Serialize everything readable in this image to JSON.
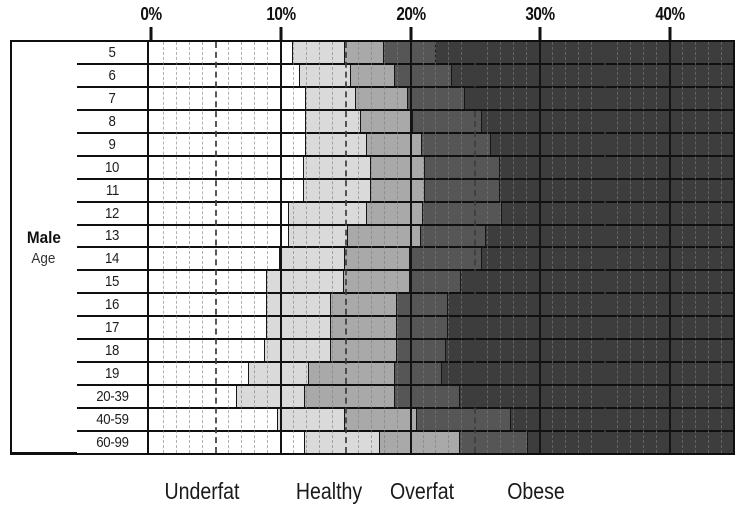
{
  "chart_data": {
    "type": "bar",
    "subtype": "horizontal-stacked-range-chart",
    "title": "",
    "group_label": {
      "bold": "Male",
      "normal": "Age"
    },
    "x_axis": {
      "tick_labels": [
        "0%",
        "10%",
        "20%",
        "30%",
        "40%"
      ],
      "tick_pcts": [
        0,
        10,
        20,
        30,
        40
      ],
      "max_pct": 44.85,
      "minor_gridline_every_pct": 1,
      "dash_gridline_every_pct": 5,
      "solid_gridline_every_pct": 10
    },
    "zones": [
      {
        "label": "Underfat",
        "center_pct": 3.9
      },
      {
        "label": "Healthy",
        "center_pct": 13.7
      },
      {
        "label": "Overfat",
        "center_pct": 20.9
      },
      {
        "label": "Obese",
        "center_pct": 29.7
      }
    ],
    "colors": {
      "underfat": "#ffffff",
      "healthy": "#dadada",
      "overfat": "#a9a9a9",
      "obese": "#565656",
      "obese_deep": "#3d3d3d",
      "line": "#111111"
    },
    "rows": [
      {
        "age": "5",
        "underfat_end": 11.0,
        "healthy_end": 15.0,
        "overfat_end": 18.0,
        "obese_band_end": 22.0
      },
      {
        "age": "6",
        "underfat_end": 11.5,
        "healthy_end": 15.4,
        "overfat_end": 18.8,
        "obese_band_end": 23.2
      },
      {
        "age": "7",
        "underfat_end": 12.0,
        "healthy_end": 15.8,
        "overfat_end": 19.8,
        "obese_band_end": 24.2
      },
      {
        "age": "8",
        "underfat_end": 12.0,
        "healthy_end": 16.2,
        "overfat_end": 20.2,
        "obese_band_end": 25.5
      },
      {
        "age": "9",
        "underfat_end": 12.0,
        "healthy_end": 16.7,
        "overfat_end": 20.9,
        "obese_band_end": 26.2
      },
      {
        "age": "10",
        "underfat_end": 11.8,
        "healthy_end": 17.0,
        "overfat_end": 21.1,
        "obese_band_end": 26.9
      },
      {
        "age": "11",
        "underfat_end": 11.8,
        "healthy_end": 17.0,
        "overfat_end": 21.1,
        "obese_band_end": 26.9
      },
      {
        "age": "12",
        "underfat_end": 10.7,
        "healthy_end": 16.7,
        "overfat_end": 21.0,
        "obese_band_end": 27.0
      },
      {
        "age": "13",
        "underfat_end": 10.7,
        "healthy_end": 15.2,
        "overfat_end": 20.8,
        "obese_band_end": 25.8
      },
      {
        "age": "14",
        "underfat_end": 10.0,
        "healthy_end": 15.0,
        "overfat_end": 20.0,
        "obese_band_end": 25.5
      },
      {
        "age": "15",
        "underfat_end": 9.0,
        "healthy_end": 14.9,
        "overfat_end": 20.0,
        "obese_band_end": 23.9
      },
      {
        "age": "16",
        "underfat_end": 9.0,
        "healthy_end": 13.9,
        "overfat_end": 19.0,
        "obese_band_end": 22.9
      },
      {
        "age": "17",
        "underfat_end": 9.0,
        "healthy_end": 13.9,
        "overfat_end": 19.0,
        "obese_band_end": 22.9
      },
      {
        "age": "18",
        "underfat_end": 8.8,
        "healthy_end": 13.9,
        "overfat_end": 19.0,
        "obese_band_end": 22.7
      },
      {
        "age": "19",
        "underfat_end": 7.6,
        "healthy_end": 12.2,
        "overfat_end": 18.8,
        "obese_band_end": 22.4
      },
      {
        "age": "20-39",
        "underfat_end": 6.7,
        "healthy_end": 11.9,
        "overfat_end": 18.8,
        "obese_band_end": 23.8
      },
      {
        "age": "40-59",
        "underfat_end": 9.8,
        "healthy_end": 15.0,
        "overfat_end": 20.5,
        "obese_band_end": 27.7
      },
      {
        "age": "60-99",
        "underfat_end": 11.9,
        "healthy_end": 17.7,
        "overfat_end": 23.8,
        "obese_band_end": 29.0
      }
    ]
  }
}
